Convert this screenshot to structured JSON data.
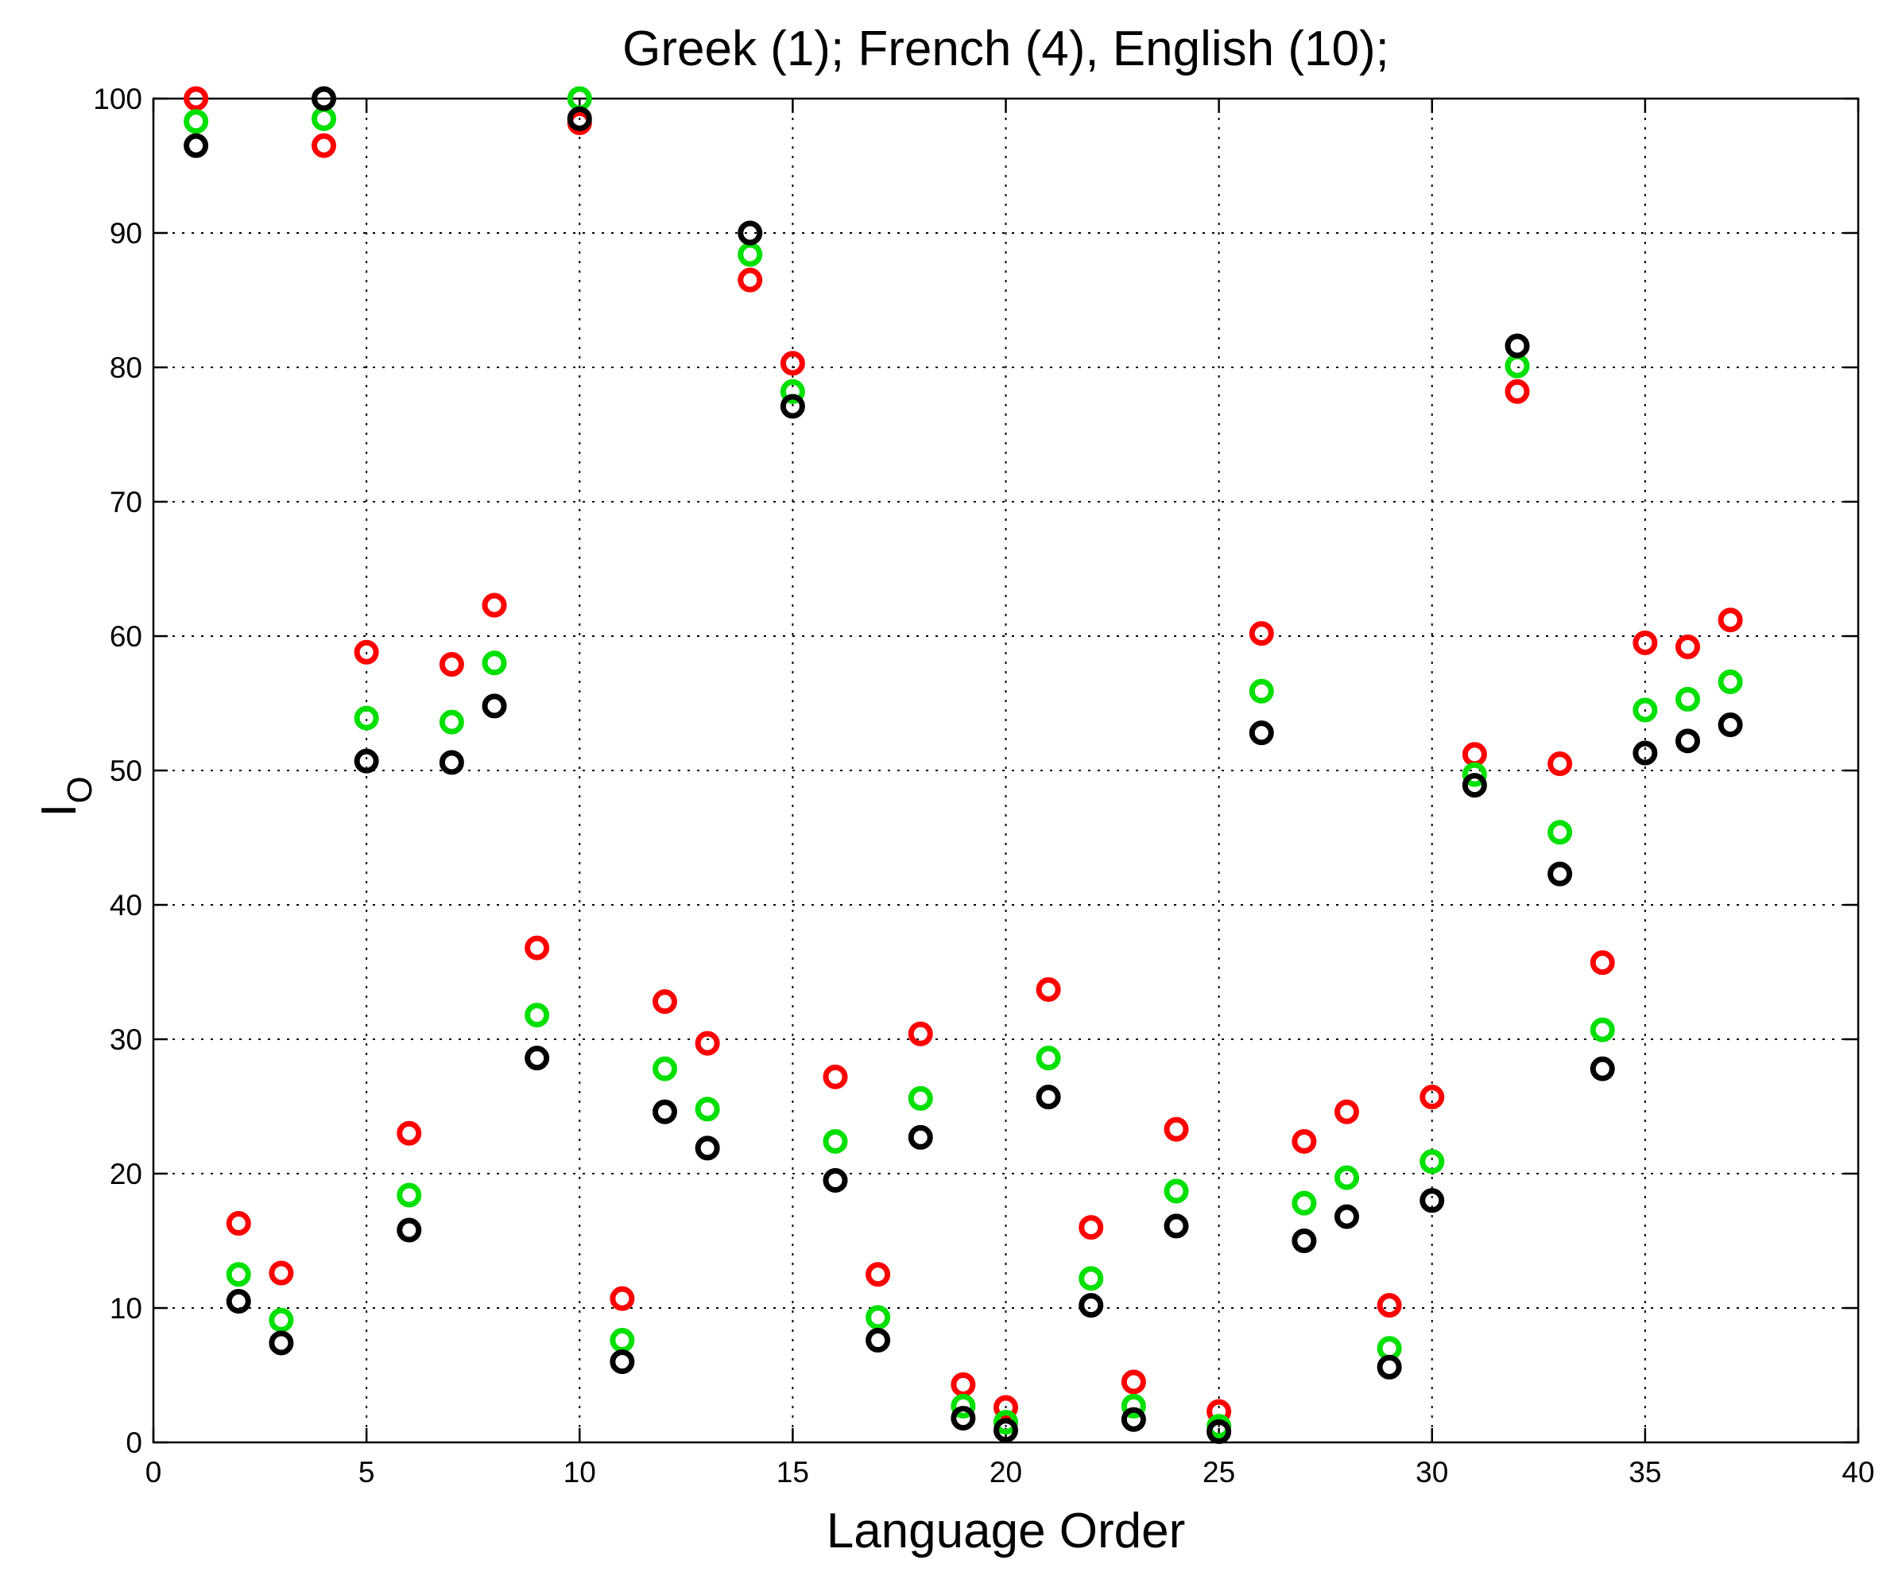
{
  "chart_data": {
    "type": "scatter",
    "title": "Greek (1); French (4), English (10);",
    "xlabel": "Language Order",
    "ylabel_main": "I",
    "ylabel_sub": "O",
    "xlim": [
      0,
      40
    ],
    "ylim": [
      0,
      100
    ],
    "xticks": [
      0,
      5,
      10,
      15,
      20,
      25,
      30,
      35,
      40
    ],
    "yticks": [
      0,
      10,
      20,
      30,
      40,
      50,
      60,
      70,
      80,
      90,
      100
    ],
    "grid": true,
    "marker": "o",
    "x": [
      1,
      2,
      3,
      4,
      5,
      6,
      7,
      8,
      9,
      10,
      11,
      12,
      13,
      14,
      15,
      16,
      17,
      18,
      19,
      20,
      21,
      22,
      23,
      24,
      25,
      26,
      27,
      28,
      29,
      30,
      31,
      32,
      33,
      34,
      35,
      36,
      37
    ],
    "series": [
      {
        "color": "#ff0000",
        "values": [
          100,
          16.3,
          12.6,
          96.5,
          58.8,
          23.0,
          57.9,
          62.3,
          36.8,
          98.2,
          10.7,
          32.8,
          29.7,
          86.5,
          80.3,
          27.2,
          12.5,
          30.4,
          4.3,
          2.6,
          33.7,
          16.0,
          4.5,
          23.3,
          2.3,
          60.2,
          22.4,
          24.6,
          10.2,
          25.7,
          51.2,
          78.2,
          50.5,
          35.7,
          59.5,
          59.2,
          61.2
        ]
      },
      {
        "color": "#00e000",
        "values": [
          98.3,
          12.5,
          9.1,
          98.5,
          53.9,
          18.4,
          53.6,
          58.0,
          31.8,
          100,
          7.6,
          27.8,
          24.8,
          88.4,
          78.2,
          22.4,
          9.3,
          25.6,
          2.7,
          1.5,
          28.6,
          12.2,
          2.7,
          18.7,
          1.2,
          55.9,
          17.8,
          19.7,
          7.0,
          20.9,
          49.7,
          80.1,
          45.4,
          30.7,
          54.5,
          55.3,
          56.6
        ]
      },
      {
        "color": "#000000",
        "values": [
          96.5,
          10.5,
          7.4,
          100,
          50.7,
          15.8,
          50.6,
          54.8,
          28.6,
          98.5,
          6.0,
          24.6,
          21.9,
          90.0,
          77.1,
          19.5,
          7.6,
          22.7,
          1.8,
          0.9,
          25.7,
          10.2,
          1.7,
          16.1,
          0.8,
          52.8,
          15.0,
          16.8,
          5.6,
          18.0,
          48.9,
          81.6,
          42.3,
          27.8,
          51.3,
          52.2,
          53.4
        ]
      }
    ]
  }
}
